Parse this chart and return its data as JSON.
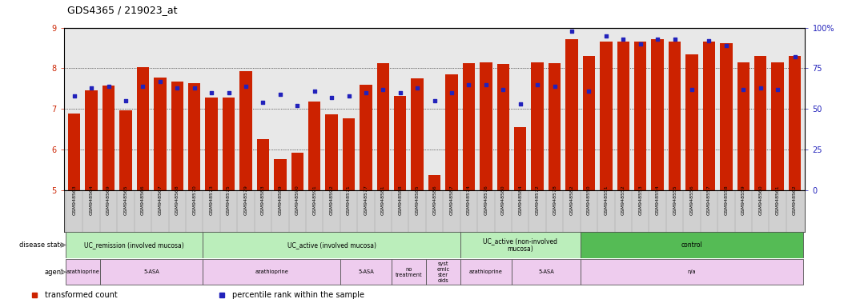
{
  "title": "GDS4365 / 219023_at",
  "samples": [
    "GSM948563",
    "GSM948564",
    "GSM948569",
    "GSM948565",
    "GSM948566",
    "GSM948567",
    "GSM948568",
    "GSM948570",
    "GSM948573",
    "GSM948575",
    "GSM948579",
    "GSM948583",
    "GSM948589",
    "GSM948590",
    "GSM948591",
    "GSM948592",
    "GSM948571",
    "GSM948577",
    "GSM948581",
    "GSM948588",
    "GSM948585",
    "GSM948586",
    "GSM948587",
    "GSM948574",
    "GSM948576",
    "GSM948580",
    "GSM948584",
    "GSM948572",
    "GSM948578",
    "GSM948582",
    "GSM948550",
    "GSM948551",
    "GSM948552",
    "GSM948553",
    "GSM948554",
    "GSM948555",
    "GSM948556",
    "GSM948557",
    "GSM948558",
    "GSM948559",
    "GSM948560",
    "GSM948561",
    "GSM948562"
  ],
  "bar_values": [
    6.88,
    7.45,
    7.57,
    6.97,
    8.02,
    7.78,
    7.67,
    7.63,
    7.28,
    7.27,
    7.93,
    6.25,
    5.77,
    5.92,
    7.18,
    6.87,
    6.77,
    7.59,
    8.12,
    7.31,
    7.76,
    5.37,
    7.85,
    8.12,
    8.15,
    8.1,
    6.55,
    8.15,
    8.13,
    8.72,
    8.3,
    8.65,
    8.65,
    8.65,
    8.72,
    8.65,
    8.35,
    8.65,
    8.62,
    8.15,
    8.3,
    8.15,
    8.3
  ],
  "dot_values_pct": [
    58,
    63,
    64,
    55,
    64,
    67,
    63,
    63,
    60,
    60,
    64,
    54,
    59,
    52,
    61,
    57,
    58,
    60,
    62,
    60,
    63,
    55,
    60,
    65,
    65,
    62,
    53,
    65,
    64,
    98,
    61,
    95,
    93,
    90,
    93,
    93,
    62,
    92,
    89,
    62,
    63,
    62,
    82
  ],
  "ylim_min": 5,
  "ylim_max": 9,
  "yticks": [
    5,
    6,
    7,
    8,
    9
  ],
  "y2ticks": [
    0,
    25,
    50,
    75,
    100
  ],
  "y2labels": [
    "0",
    "25",
    "50",
    "75",
    "100%"
  ],
  "bar_color": "#CC2200",
  "dot_color": "#2222BB",
  "plot_bg_color": "#E8E8E8",
  "xtick_bg_color": "#D0D0D0",
  "disease_state_groups": [
    {
      "label": "UC_remission (involved mucosa)",
      "start": 0,
      "end": 8,
      "color": "#BBEEBB"
    },
    {
      "label": "UC_active (involved mucosa)",
      "start": 8,
      "end": 23,
      "color": "#BBEEBB"
    },
    {
      "label": "UC_active (non-involved\nmucosa)",
      "start": 23,
      "end": 30,
      "color": "#BBEEBB"
    },
    {
      "label": "control",
      "start": 30,
      "end": 43,
      "color": "#55BB55"
    }
  ],
  "agent_groups": [
    {
      "label": "azathioprine",
      "start": 0,
      "end": 2,
      "color": "#EECCEE"
    },
    {
      "label": "5-ASA",
      "start": 2,
      "end": 8,
      "color": "#EECCEE"
    },
    {
      "label": "azathioprine",
      "start": 8,
      "end": 16,
      "color": "#EECCEE"
    },
    {
      "label": "5-ASA",
      "start": 16,
      "end": 19,
      "color": "#EECCEE"
    },
    {
      "label": "no\ntreatment",
      "start": 19,
      "end": 21,
      "color": "#EECCEE"
    },
    {
      "label": "syst\nemic\nster\noids",
      "start": 21,
      "end": 23,
      "color": "#EECCEE"
    },
    {
      "label": "azathioprine",
      "start": 23,
      "end": 26,
      "color": "#EECCEE"
    },
    {
      "label": "5-ASA",
      "start": 26,
      "end": 30,
      "color": "#EECCEE"
    },
    {
      "label": "n/a",
      "start": 30,
      "end": 43,
      "color": "#EECCEE"
    }
  ],
  "legend_items": [
    {
      "label": "transformed count",
      "color": "#CC2200"
    },
    {
      "label": "percentile rank within the sample",
      "color": "#2222BB"
    }
  ]
}
